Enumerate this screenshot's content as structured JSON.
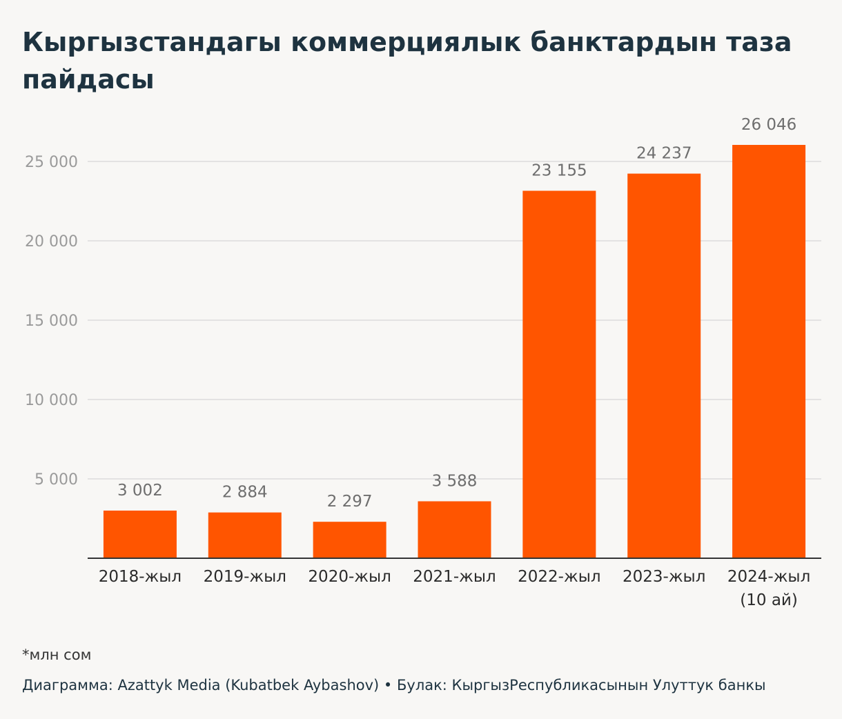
{
  "title": "Кыргызстандагы коммерциялык банктардын таза пайдасы",
  "footnote": "*млн сом",
  "credit": {
    "chart_by": "Диаграмма: Azattyk Media (Kubatbek Aybashov)",
    "separator": "•",
    "source": "Булак: КыргызРеспубликасынын Улуттук банкы"
  },
  "colors": {
    "bar": "#ff5500",
    "gridline": "#dcdcdc",
    "axis": "#333333"
  },
  "chart_data": {
    "type": "bar",
    "categories": [
      "2018-жыл",
      "2019-жыл",
      "2020-жыл",
      "2021-жыл",
      "2022-жыл",
      "2023-жыл",
      "2024-жыл (10 ай)"
    ],
    "category_lines": [
      [
        "2018-жыл"
      ],
      [
        "2019-жыл"
      ],
      [
        "2020-жыл"
      ],
      [
        "2021-жыл"
      ],
      [
        "2022-жыл"
      ],
      [
        "2023-жыл"
      ],
      [
        "2024-жыл",
        "(10 ай)"
      ]
    ],
    "values": [
      3002,
      2884,
      2297,
      3588,
      23155,
      24237,
      26046
    ],
    "value_labels": [
      "3 002",
      "2 884",
      "2 297",
      "3 588",
      "23 155",
      "24 237",
      "26 046"
    ],
    "y_ticks": [
      5000,
      10000,
      15000,
      20000,
      25000
    ],
    "y_tick_labels": [
      "5 000",
      "10 000",
      "15 000",
      "20 000",
      "25 000"
    ],
    "ylim": [
      0,
      26046
    ],
    "grid": true,
    "xlabel": "",
    "ylabel": ""
  }
}
